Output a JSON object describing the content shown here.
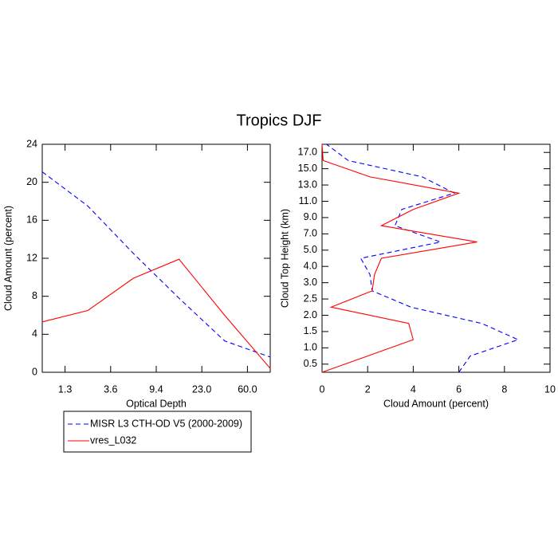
{
  "title": "Tropics DJF",
  "chart_data": [
    {
      "type": "line",
      "orientation": "vertical",
      "xlabel": "Optical Depth",
      "ylabel": "Cloud Amount (percent)",
      "x": [
        0,
        1,
        2,
        3,
        4,
        5
      ],
      "xlim": [
        0,
        5
      ],
      "xticks": [
        {
          "value": 0.5,
          "label": "1.3"
        },
        {
          "value": 1.5,
          "label": "3.6"
        },
        {
          "value": 2.5,
          "label": "9.4"
        },
        {
          "value": 3.5,
          "label": "23.0"
        },
        {
          "value": 4.5,
          "label": "60.0"
        }
      ],
      "ylim": [
        0,
        24
      ],
      "yticks": [
        0,
        4,
        8,
        12,
        16,
        20,
        24
      ],
      "legend": "below",
      "series": [
        {
          "name": "MISR L3 CTH-OD V5 (2000-2009)",
          "color": "#0000ff",
          "line_style": "dashed",
          "values": [
            21.1,
            17.5,
            12.5,
            7.8,
            3.3,
            1.6
          ]
        },
        {
          "name": "vres_L032",
          "color": "#ff0000",
          "line_style": "solid",
          "values": [
            5.3,
            6.5,
            9.9,
            11.9,
            6.0,
            0.4
          ]
        }
      ]
    },
    {
      "type": "line",
      "orientation": "horizontal",
      "xlabel": "Cloud Amount (percent)",
      "ylabel": "Cloud Top Height (km)",
      "xlim": [
        0,
        10
      ],
      "xticks": [
        0,
        2,
        4,
        6,
        8,
        10
      ],
      "y": [
        0,
        1,
        2,
        3,
        4,
        5,
        6,
        7,
        8,
        9,
        10,
        11,
        12,
        13,
        14
      ],
      "ylim": [
        0,
        14
      ],
      "yticks": [
        {
          "value": 0.5,
          "label": "0.5"
        },
        {
          "value": 1.5,
          "label": "1.0"
        },
        {
          "value": 2.5,
          "label": "1.5"
        },
        {
          "value": 3.5,
          "label": "2.0"
        },
        {
          "value": 4.5,
          "label": "2.5"
        },
        {
          "value": 5.5,
          "label": "3.0"
        },
        {
          "value": 6.5,
          "label": "4.0"
        },
        {
          "value": 7.5,
          "label": "5.0"
        },
        {
          "value": 8.5,
          "label": "7.0"
        },
        {
          "value": 9.5,
          "label": "9.0"
        },
        {
          "value": 10.5,
          "label": "11.0"
        },
        {
          "value": 11.5,
          "label": "13.0"
        },
        {
          "value": 12.5,
          "label": "15.0"
        },
        {
          "value": 13.5,
          "label": "17.0"
        }
      ],
      "series": [
        {
          "color": "#0000ff",
          "line_style": "dashed",
          "values": [
            6.0,
            6.5,
            8.6,
            7.0,
            3.9,
            2.2,
            2.1,
            1.7,
            5.2,
            3.2,
            3.5,
            5.8,
            4.4,
            1.15,
            0.2
          ]
        },
        {
          "color": "#ff0000",
          "line_style": "solid",
          "values": [
            0.0,
            2.0,
            4.0,
            3.8,
            0.4,
            2.2,
            2.3,
            2.6,
            6.8,
            2.6,
            4.0,
            6.0,
            2.1,
            0.05,
            0.0
          ]
        }
      ]
    }
  ]
}
